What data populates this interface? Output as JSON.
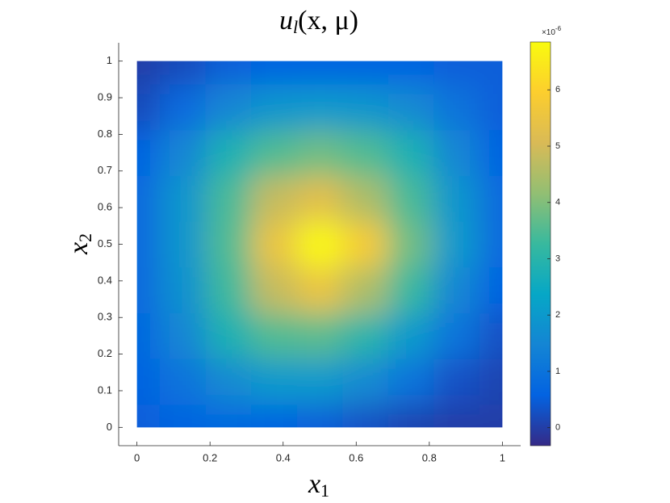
{
  "chart_data": {
    "type": "heatmap",
    "title": {
      "base": "u",
      "sub": "l",
      "rest": "(x, μ)"
    },
    "xlabel": {
      "base": "x",
      "sub": "1"
    },
    "ylabel": {
      "base": "x",
      "sub": "2"
    },
    "x": [
      0,
      0.125,
      0.25,
      0.375,
      0.5,
      0.625,
      0.75,
      0.875,
      1
    ],
    "y": [
      0,
      0.125,
      0.25,
      0.375,
      0.5,
      0.625,
      0.75,
      0.875,
      1
    ],
    "z": [
      [
        0.5,
        0.6,
        0.7,
        0.6,
        0.5,
        0.3,
        0.1,
        0.0,
        0.0
      ],
      [
        0.6,
        1.0,
        1.6,
        2.0,
        2.0,
        1.6,
        1.0,
        0.3,
        0.1
      ],
      [
        0.7,
        1.5,
        2.8,
        3.5,
        3.6,
        3.0,
        2.0,
        1.0,
        0.3
      ],
      [
        0.8,
        1.8,
        3.3,
        4.8,
        5.5,
        4.5,
        3.2,
        1.5,
        0.6
      ],
      [
        0.8,
        1.9,
        3.5,
        5.5,
        6.8,
        5.8,
        3.8,
        2.0,
        0.8
      ],
      [
        0.8,
        1.9,
        3.4,
        4.8,
        5.3,
        4.5,
        3.4,
        1.9,
        0.8
      ],
      [
        0.6,
        1.5,
        2.8,
        3.5,
        3.8,
        3.5,
        2.8,
        1.5,
        0.6
      ],
      [
        0.2,
        0.8,
        1.5,
        1.9,
        2.0,
        1.9,
        1.6,
        1.0,
        0.5
      ],
      [
        0.0,
        0.2,
        0.5,
        0.6,
        0.6,
        0.6,
        0.6,
        0.5,
        0.5
      ]
    ],
    "xlim": [
      -0.05,
      1.05
    ],
    "ylim": [
      -0.05,
      1.05
    ],
    "xticks": [
      0,
      0.2,
      0.4,
      0.6,
      0.8,
      1
    ],
    "yticks": [
      0,
      0.1,
      0.2,
      0.3,
      0.4,
      0.5,
      0.6,
      0.7,
      0.8,
      0.9,
      1
    ],
    "clim": [
      -0.32,
      6.85
    ],
    "cticks": [
      0,
      1,
      2,
      3,
      4,
      5,
      6
    ],
    "cexponent": {
      "base": "×10",
      "exp": "-6"
    },
    "colormap": [
      "#352a87",
      "#0363e1",
      "#1485d4",
      "#06a7c6",
      "#38b99e",
      "#92bf73",
      "#d9ba56",
      "#fcce2e",
      "#f9fb0e"
    ]
  }
}
